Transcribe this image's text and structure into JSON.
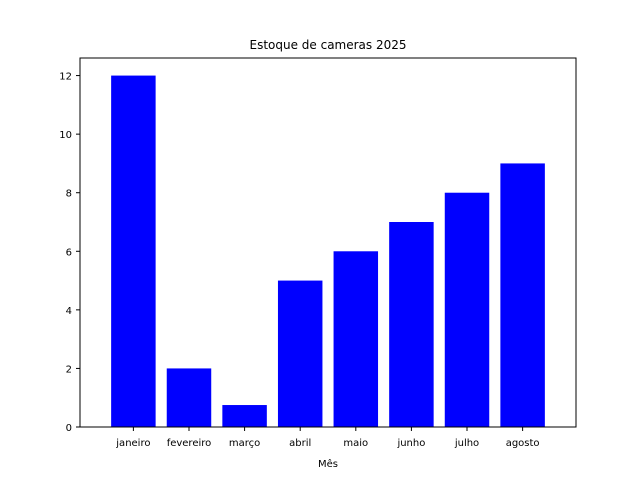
{
  "chart_data": {
    "type": "bar",
    "title": "Estoque de cameras 2025",
    "xlabel": "Mês",
    "ylabel": "",
    "categories": [
      "janeiro",
      "fevereiro",
      "março",
      "abril",
      "maio",
      "junho",
      "julho",
      "agosto"
    ],
    "values": [
      12,
      2,
      0.75,
      5,
      6,
      7,
      8,
      9
    ],
    "ylim": [
      0,
      12.6
    ],
    "yticks": [
      0,
      2,
      4,
      6,
      8,
      10,
      12
    ],
    "grid": false,
    "bar_color": "#0000ff"
  }
}
